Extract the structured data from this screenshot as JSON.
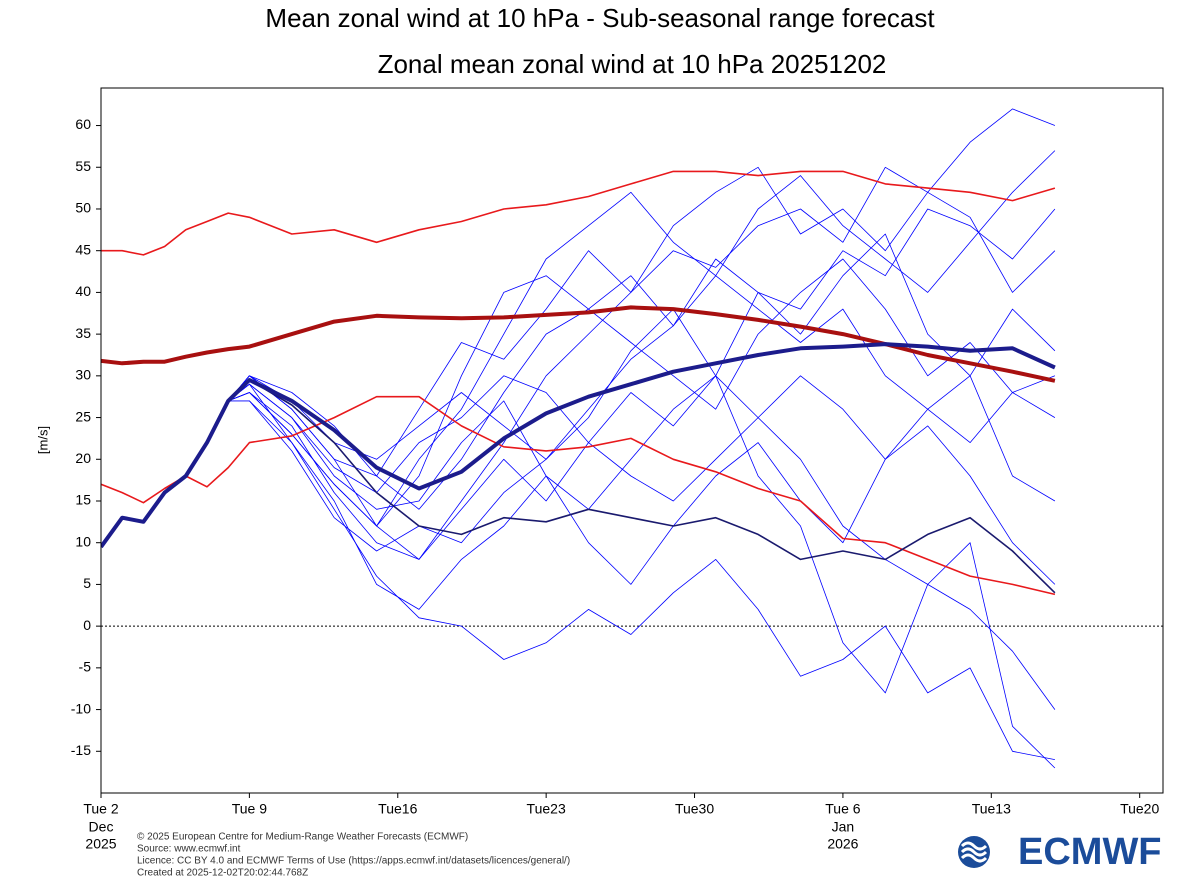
{
  "chart_data": {
    "type": "line",
    "title": "Mean zonal wind at 10 hPa - Sub-seasonal range forecast",
    "subtitle": "Zonal mean zonal wind at 10 hPa 20251202",
    "ylabel": "[m/s]",
    "x": [
      0,
      1,
      2,
      3,
      4,
      5,
      6,
      7,
      9,
      11,
      13,
      15,
      17,
      19,
      21,
      23,
      25,
      27,
      29,
      31,
      33,
      35,
      37,
      39,
      41,
      43,
      45
    ],
    "xlim": [
      0,
      50.1
    ],
    "xticks": [
      {
        "value": 0,
        "label": "Tue 2"
      },
      {
        "value": 7,
        "label": "Tue 9"
      },
      {
        "value": 14,
        "label": "Tue16"
      },
      {
        "value": 21,
        "label": "Tue23"
      },
      {
        "value": 28,
        "label": "Tue30"
      },
      {
        "value": 35,
        "label": "Tue 6"
      },
      {
        "value": 42,
        "label": "Tue13"
      },
      {
        "value": 49,
        "label": "Tue20"
      }
    ],
    "xtick_sublabels": [
      {
        "value": 0,
        "lines": [
          "Dec",
          "2025"
        ]
      },
      {
        "value": 35,
        "lines": [
          "Jan",
          "2026"
        ]
      }
    ],
    "ylim": [
      -20,
      64.5
    ],
    "yticks": [
      -15,
      -10,
      -5,
      0,
      5,
      10,
      15,
      20,
      25,
      30,
      35,
      40,
      45,
      50,
      55,
      60
    ],
    "reference_line": 0,
    "series": [
      {
        "color": "#0000ff",
        "width": 0.8,
        "values": [
          9.5,
          13,
          12.5,
          16,
          18,
          22,
          27,
          30,
          26,
          20,
          12,
          8,
          15,
          22,
          30,
          35,
          40,
          45,
          43,
          48,
          50,
          46,
          55,
          52,
          58,
          62,
          60
        ]
      },
      {
        "color": "#0000ff",
        "width": 0.8,
        "values": [
          9.5,
          13,
          12.5,
          16,
          18,
          22,
          27,
          30,
          28,
          24,
          18,
          14,
          20,
          28,
          35,
          38,
          42,
          36,
          44,
          40,
          38,
          45,
          42,
          50,
          48,
          44,
          50
        ]
      },
      {
        "color": "#0000ff",
        "width": 0.8,
        "values": [
          9.5,
          13,
          12.5,
          16,
          18,
          22,
          27,
          29,
          22,
          14,
          6,
          1,
          0,
          -4,
          -2,
          2,
          -1,
          4,
          8,
          2,
          -6,
          -4,
          0,
          -8,
          -5,
          -15,
          -16
        ]
      },
      {
        "color": "#0000ff",
        "width": 0.8,
        "values": [
          9.5,
          13,
          12.5,
          16,
          18,
          22,
          27,
          29,
          25,
          19,
          16,
          22,
          25,
          30,
          28,
          22,
          18,
          15,
          20,
          25,
          30,
          26,
          20,
          24,
          18,
          10,
          5
        ]
      },
      {
        "color": "#0000ff",
        "width": 0.8,
        "values": [
          9.5,
          13,
          12.5,
          16,
          18,
          22,
          27,
          28,
          23,
          17,
          12,
          18,
          30,
          40,
          42,
          38,
          34,
          30,
          26,
          35,
          40,
          44,
          38,
          30,
          34,
          28,
          25
        ]
      },
      {
        "color": "#0000ff",
        "width": 0.8,
        "values": [
          9.5,
          13,
          12.5,
          16,
          18,
          22,
          27,
          27,
          21,
          13,
          9,
          12,
          10,
          16,
          20,
          25,
          33,
          38,
          30,
          25,
          20,
          12,
          8,
          5,
          2,
          -3,
          -10
        ]
      },
      {
        "color": "#0000ff",
        "width": 0.8,
        "values": [
          9.5,
          13,
          12.5,
          16,
          18,
          22,
          27,
          30,
          26,
          20,
          18,
          26,
          34,
          32,
          38,
          45,
          40,
          48,
          52,
          55,
          47,
          50,
          45,
          52,
          49,
          40,
          45
        ]
      },
      {
        "color": "#0000ff",
        "width": 0.8,
        "values": [
          9.5,
          13,
          12.5,
          16,
          18,
          22,
          27,
          28,
          24,
          16,
          10,
          8,
          14,
          20,
          15,
          22,
          28,
          24,
          30,
          40,
          35,
          42,
          47,
          35,
          30,
          38,
          33
        ]
      },
      {
        "color": "#0000ff",
        "width": 0.8,
        "values": [
          9.5,
          13,
          12.5,
          16,
          18,
          22,
          27,
          29,
          25,
          18,
          14,
          15,
          22,
          27,
          18,
          10,
          5,
          12,
          18,
          22,
          15,
          10,
          20,
          26,
          30,
          18,
          15
        ]
      },
      {
        "color": "#0000ff",
        "width": 0.8,
        "values": [
          9.5,
          13,
          12.5,
          16,
          18,
          22,
          27,
          27,
          22,
          15,
          5,
          2,
          8,
          12,
          18,
          14,
          20,
          26,
          30,
          18,
          12,
          -2,
          -8,
          5,
          10,
          -12,
          -17
        ]
      },
      {
        "color": "#0000ff",
        "width": 0.8,
        "values": [
          9.5,
          13,
          12.5,
          16,
          18,
          22,
          27,
          28,
          23,
          17,
          12,
          20,
          26,
          35,
          44,
          48,
          52,
          46,
          42,
          50,
          54,
          48,
          44,
          40,
          46,
          52,
          57
        ]
      },
      {
        "color": "#0000ff",
        "width": 0.8,
        "values": [
          9.5,
          13,
          12.5,
          16,
          18,
          22,
          27,
          30,
          27,
          22,
          20,
          24,
          28,
          24,
          20,
          26,
          32,
          36,
          42,
          38,
          34,
          38,
          30,
          26,
          22,
          28,
          30
        ]
      },
      {
        "color": "#e8191c",
        "width": 1.6,
        "values": [
          45,
          45,
          44.5,
          45.5,
          47.5,
          48.5,
          49.5,
          49,
          47,
          47.5,
          46,
          47.5,
          48.5,
          50,
          50.5,
          51.5,
          53,
          54.5,
          54.5,
          54,
          54.5,
          54.5,
          53,
          52.5,
          52,
          51,
          52.5
        ]
      },
      {
        "color": "#e8191c",
        "width": 1.6,
        "values": [
          17,
          16,
          14.8,
          16.5,
          18,
          16.7,
          19,
          22,
          22.8,
          25,
          27.5,
          27.5,
          24,
          21.5,
          21,
          21.5,
          22.5,
          20,
          18.5,
          16.5,
          15,
          10.5,
          10,
          8,
          6,
          5,
          3.8
        ]
      },
      {
        "color": "#a81010",
        "width": 4,
        "values": [
          31.8,
          31.5,
          31.7,
          31.7,
          32.3,
          32.8,
          33.2,
          33.5,
          35,
          36.5,
          37.2,
          37,
          36.9,
          37,
          37.3,
          37.6,
          38.2,
          38,
          37.4,
          36.7,
          35.9,
          35,
          33.8,
          32.5,
          31.5,
          30.5,
          29.4
        ]
      },
      {
        "color": "#1a1a6e",
        "width": 1.6,
        "values": [
          9.5,
          13,
          12.5,
          16,
          18,
          22,
          27,
          29.5,
          26.5,
          22,
          16,
          12,
          11,
          13,
          12.5,
          14,
          13,
          12,
          13,
          11,
          8,
          9,
          8,
          11,
          13,
          9,
          4
        ]
      },
      {
        "color": "#1c1c8c",
        "width": 4,
        "values": [
          9.5,
          13,
          12.5,
          16,
          18,
          22,
          27,
          29.5,
          27,
          23.5,
          19,
          16.5,
          18.5,
          22.5,
          25.5,
          27.5,
          29,
          30.5,
          31.5,
          32.5,
          33.3,
          33.5,
          33.8,
          33.5,
          33,
          33.3,
          31
        ]
      }
    ],
    "credits": [
      "© 2025 European Centre for Medium-Range Weather Forecasts (ECMWF)",
      "Source: www.ecmwf.int",
      "Licence: CC BY 4.0 and ECMWF Terms of Use (https://apps.ecmwf.int/datasets/licences/general/)",
      "Created at 2025-12-02T20:02:44.768Z"
    ],
    "logo": "ECMWF"
  }
}
